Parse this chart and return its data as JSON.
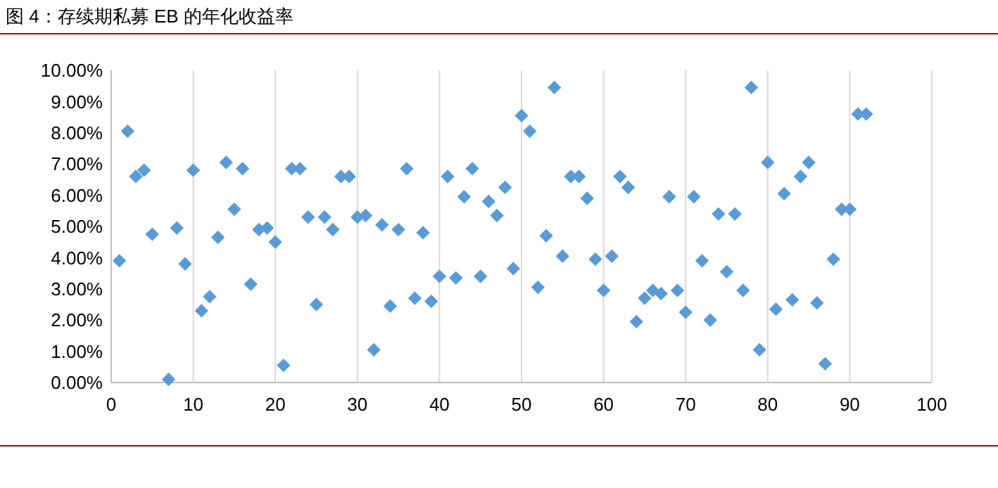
{
  "chart_data": {
    "type": "scatter",
    "title": "图 4：存续期私募 EB 的年化收益率",
    "x": [
      1,
      2,
      3,
      4,
      5,
      7,
      8,
      9,
      10,
      11,
      12,
      13,
      14,
      15,
      16,
      17,
      18,
      19,
      20,
      21,
      22,
      23,
      24,
      25,
      26,
      27,
      28,
      29,
      30,
      31,
      32,
      33,
      34,
      35,
      36,
      37,
      38,
      39,
      40,
      41,
      42,
      43,
      44,
      45,
      46,
      47,
      48,
      49,
      50,
      51,
      52,
      53,
      54,
      55,
      56,
      57,
      58,
      59,
      60,
      61,
      62,
      63,
      64,
      65,
      66,
      67,
      68,
      69,
      70,
      71,
      72,
      73,
      74,
      75,
      76,
      77,
      78,
      79,
      80,
      81,
      82,
      83,
      84,
      85,
      86,
      87,
      88,
      89,
      90,
      91,
      92
    ],
    "series": [
      {
        "color": "#5b9bd5",
        "values": [
          3.9,
          8.05,
          6.6,
          6.8,
          4.75,
          0.1,
          4.95,
          3.8,
          6.8,
          2.3,
          2.75,
          4.65,
          7.05,
          5.55,
          6.85,
          3.15,
          4.9,
          4.95,
          4.5,
          0.55,
          6.85,
          6.85,
          5.3,
          2.5,
          5.3,
          4.9,
          6.6,
          6.6,
          5.3,
          5.35,
          1.05,
          5.05,
          2.45,
          4.9,
          6.85,
          2.7,
          4.8,
          2.6,
          3.4,
          6.6,
          3.35,
          5.95,
          6.85,
          3.4,
          5.8,
          5.35,
          6.25,
          3.65,
          8.55,
          8.05,
          3.05,
          4.7,
          9.45,
          4.05,
          6.6,
          6.6,
          5.9,
          3.95,
          2.95,
          4.05,
          6.6,
          6.25,
          1.95,
          2.7,
          2.95,
          2.85,
          5.95,
          2.95,
          2.25,
          5.95,
          3.9,
          2.0,
          5.4,
          3.55,
          5.4,
          2.95,
          9.45,
          1.05,
          7.05,
          2.35,
          6.05,
          2.65,
          6.6,
          7.05,
          2.55,
          0.6,
          3.95,
          5.55,
          5.55,
          8.6,
          8.6
        ]
      }
    ],
    "xlim": [
      0,
      100
    ],
    "xticks": [
      0,
      10,
      20,
      30,
      40,
      50,
      60,
      70,
      80,
      90,
      100
    ],
    "ylim": [
      0,
      10
    ],
    "yticks": [
      {
        "value": 0,
        "label": "0.00%"
      },
      {
        "value": 1,
        "label": "1.00%"
      },
      {
        "value": 2,
        "label": "2.00%"
      },
      {
        "value": 3,
        "label": "3.00%"
      },
      {
        "value": 4,
        "label": "4.00%"
      },
      {
        "value": 5,
        "label": "5.00%"
      },
      {
        "value": 6,
        "label": "6.00%"
      },
      {
        "value": 7,
        "label": "7.00%"
      },
      {
        "value": 8,
        "label": "8.00%"
      },
      {
        "value": 9,
        "label": "9.00%"
      },
      {
        "value": 10,
        "label": "10.00%"
      }
    ],
    "grid": "x",
    "marker": "diamond"
  }
}
